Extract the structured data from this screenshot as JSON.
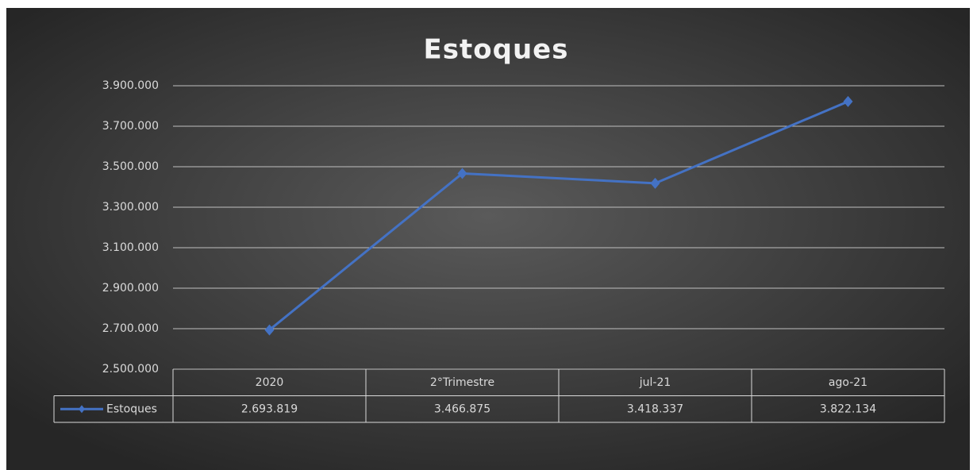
{
  "chart_data": {
    "type": "line",
    "title": "Estoques",
    "categories": [
      "2020",
      "2°Trimestre",
      "jul-21",
      "ago-21"
    ],
    "series": [
      {
        "name": "Estoques",
        "color": "#4472c4",
        "values": [
          2693819,
          3466875,
          3418337,
          3822134
        ],
        "value_labels": [
          "2.693.819",
          "3.466.875",
          "3.418.337",
          "3.822.134"
        ]
      }
    ],
    "ylim": [
      2500000,
      3900000
    ],
    "yticks": [
      {
        "value": 2500000,
        "label": "2.500.000"
      },
      {
        "value": 2700000,
        "label": "2.700.000"
      },
      {
        "value": 2900000,
        "label": "2.900.000"
      },
      {
        "value": 3100000,
        "label": "3.100.000"
      },
      {
        "value": 3300000,
        "label": "3.300.000"
      },
      {
        "value": 3500000,
        "label": "3.500.000"
      },
      {
        "value": 3700000,
        "label": "3.700.000"
      },
      {
        "value": 3900000,
        "label": "3.900.000"
      }
    ],
    "grid": true
  }
}
